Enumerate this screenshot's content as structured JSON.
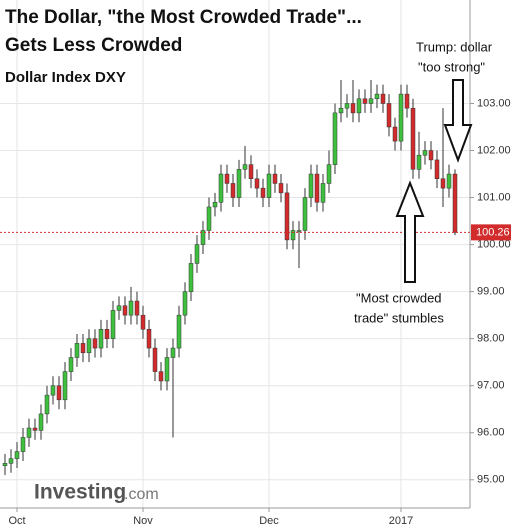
{
  "chart_data": {
    "type": "candlestick",
    "title": [
      "The Dollar, \"the Most Crowded Trade\"...",
      "Gets Less Crowded"
    ],
    "subtitle": "Dollar Index DXY",
    "annotations": [
      [
        "Trump: dollar",
        "\"too strong\""
      ],
      [
        "\"Most crowded",
        "trade\" stumbles"
      ]
    ],
    "watermark": [
      "Investing",
      ".com"
    ],
    "categories": [
      null,
      null,
      "Oct",
      null,
      null,
      null,
      null,
      null,
      null,
      null,
      null,
      null,
      null,
      null,
      null,
      null,
      null,
      null,
      null,
      null,
      null,
      null,
      null,
      "Nov",
      null,
      null,
      null,
      null,
      null,
      null,
      null,
      null,
      null,
      null,
      null,
      null,
      null,
      null,
      null,
      null,
      null,
      null,
      null,
      null,
      "Dec",
      null,
      null,
      null,
      null,
      null,
      null,
      null,
      null,
      null,
      null,
      null,
      null,
      null,
      null,
      null,
      null,
      null,
      null,
      null,
      null,
      null,
      "2017",
      null,
      null,
      null,
      null,
      null,
      null,
      null,
      null,
      null
    ],
    "open": [
      95.3,
      95.35,
      95.45,
      95.6,
      95.9,
      96.1,
      96.05,
      96.4,
      96.8,
      97.0,
      96.7,
      97.3,
      97.6,
      97.9,
      97.7,
      98.0,
      97.8,
      98.2,
      98.0,
      98.6,
      98.7,
      98.5,
      98.8,
      98.5,
      98.2,
      97.8,
      97.3,
      97.1,
      97.6,
      97.8,
      98.5,
      99.0,
      99.6,
      100.0,
      100.3,
      100.8,
      100.9,
      101.5,
      101.3,
      101.0,
      101.6,
      101.7,
      101.4,
      101.2,
      101.0,
      101.5,
      101.3,
      101.1,
      100.1,
      100.3,
      100.3,
      101.0,
      101.5,
      100.9,
      101.3,
      101.7,
      102.8,
      102.9,
      103.0,
      102.8,
      103.1,
      103.0,
      103.1,
      103.2,
      103.0,
      102.5,
      102.2,
      103.2,
      102.9,
      101.6,
      101.9,
      102.0,
      101.8,
      101.4,
      101.2,
      101.5
    ],
    "high": [
      95.55,
      95.65,
      95.8,
      96.1,
      96.3,
      96.3,
      96.6,
      97.0,
      97.2,
      97.2,
      97.5,
      97.8,
      98.1,
      98.1,
      98.2,
      98.2,
      98.4,
      98.4,
      98.8,
      98.9,
      98.9,
      99.1,
      99.0,
      98.7,
      98.4,
      98.0,
      97.5,
      97.8,
      98.0,
      98.7,
      99.2,
      99.8,
      100.2,
      100.5,
      101.0,
      101.1,
      101.7,
      101.7,
      101.5,
      101.8,
      102.1,
      101.9,
      101.6,
      101.4,
      101.7,
      101.7,
      101.5,
      101.3,
      100.5,
      100.5,
      101.2,
      101.7,
      101.7,
      101.5,
      102.0,
      103.0,
      103.5,
      103.2,
      103.5,
      103.3,
      103.3,
      103.5,
      103.4,
      103.4,
      103.2,
      102.7,
      103.4,
      103.4,
      103.1,
      102.4,
      102.2,
      102.2,
      102.0,
      102.9,
      101.7,
      101.6
    ],
    "low": [
      95.1,
      95.15,
      95.25,
      95.4,
      95.7,
      95.85,
      95.85,
      96.2,
      96.6,
      96.5,
      96.5,
      97.1,
      97.4,
      97.5,
      97.5,
      97.6,
      97.6,
      97.8,
      97.8,
      98.4,
      98.3,
      98.3,
      98.3,
      98.0,
      97.6,
      97.1,
      96.9,
      96.9,
      95.9,
      97.6,
      98.3,
      98.8,
      99.4,
      99.8,
      100.1,
      100.6,
      100.7,
      101.1,
      100.8,
      100.8,
      101.4,
      101.2,
      101.0,
      100.8,
      100.8,
      101.1,
      100.9,
      99.9,
      99.9,
      99.5,
      100.1,
      100.8,
      100.7,
      100.7,
      101.1,
      101.5,
      102.6,
      102.7,
      102.6,
      102.6,
      102.8,
      102.8,
      102.9,
      102.8,
      102.3,
      102.0,
      102.0,
      102.7,
      101.4,
      101.4,
      101.7,
      101.6,
      101.2,
      100.8,
      101.0,
      100.2
    ],
    "close": [
      95.35,
      95.45,
      95.6,
      95.9,
      96.1,
      96.05,
      96.4,
      96.8,
      97.0,
      96.7,
      97.3,
      97.6,
      97.9,
      97.7,
      98.0,
      97.8,
      98.2,
      98.0,
      98.6,
      98.7,
      98.5,
      98.8,
      98.5,
      98.2,
      97.8,
      97.3,
      97.1,
      97.6,
      97.8,
      98.5,
      99.0,
      99.6,
      100.0,
      100.3,
      100.8,
      100.9,
      101.5,
      101.3,
      101.0,
      101.6,
      101.7,
      101.4,
      101.2,
      101.0,
      101.5,
      101.3,
      101.1,
      100.1,
      100.3,
      100.3,
      101.0,
      101.5,
      100.9,
      101.3,
      101.7,
      102.8,
      102.9,
      103.0,
      102.8,
      103.1,
      103.0,
      103.1,
      103.2,
      103.0,
      102.5,
      102.2,
      103.2,
      102.9,
      101.6,
      101.9,
      102.0,
      101.8,
      101.4,
      101.2,
      101.5,
      100.26
    ],
    "colors": {
      "up": "#3fbf3f",
      "down": "#d22b2b"
    },
    "ylim": [
      94.4,
      105.2
    ],
    "yticks": [
      {
        "value": 95,
        "label": "95.00"
      },
      {
        "value": 96,
        "label": "96.00"
      },
      {
        "value": 97,
        "label": "97.00"
      },
      {
        "value": 98,
        "label": "98.00"
      },
      {
        "value": 99,
        "label": "99.00"
      },
      {
        "value": 100,
        "label": "100.00"
      },
      {
        "value": 101,
        "label": "101.00"
      },
      {
        "value": 102,
        "label": "102.00"
      },
      {
        "value": 103,
        "label": "103.00"
      }
    ],
    "grid": true
  }
}
